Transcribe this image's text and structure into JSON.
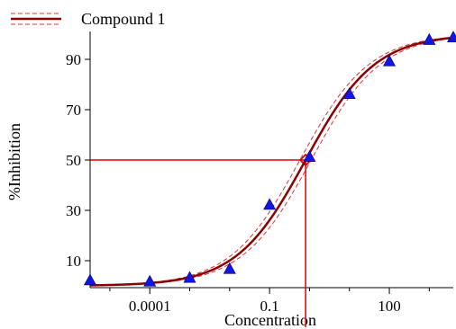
{
  "chart_data": {
    "type": "line",
    "xlabel": "Concentration",
    "ylabel": "%Inhibition",
    "x_scale": "log",
    "xlim": [
      3.2e-06,
      4000
    ],
    "ylim": [
      0,
      100
    ],
    "x_ticks": [
      {
        "value": 0.0001,
        "label": "0.0001"
      },
      {
        "value": 0.1,
        "label": "0.1"
      },
      {
        "value": 100,
        "label": "100"
      }
    ],
    "y_ticks": [
      {
        "value": 10,
        "label": "10"
      },
      {
        "value": 30,
        "label": "30"
      },
      {
        "value": 50,
        "label": "50"
      },
      {
        "value": 70,
        "label": "70"
      },
      {
        "value": 90,
        "label": "90"
      }
    ],
    "grid": false,
    "legend": {
      "position": "top-left",
      "entries": [
        {
          "label": "Compound 1"
        }
      ]
    },
    "series": [
      {
        "name": "Compound 1",
        "kind": "data-points",
        "marker": "triangle",
        "color": "#1515e0",
        "points": [
          {
            "x": 3.2e-06,
            "y": 2
          },
          {
            "x": 0.0001,
            "y": 1.5
          },
          {
            "x": 0.001,
            "y": 3
          },
          {
            "x": 0.01,
            "y": 6.5
          },
          {
            "x": 0.1,
            "y": 32
          },
          {
            "x": 1,
            "y": 51
          },
          {
            "x": 10,
            "y": 76
          },
          {
            "x": 100,
            "y": 89
          },
          {
            "x": 1000,
            "y": 97.5
          },
          {
            "x": 4000,
            "y": 98.5
          }
        ]
      },
      {
        "name": "Compound 1",
        "kind": "fit-curve",
        "model": "4PL",
        "bottom": 0,
        "top": 100,
        "ec50": 0.8,
        "hill": 0.5,
        "color": "#8b0000",
        "dashed_band_color": "#e03030"
      }
    ],
    "ic50_marker": {
      "x": 0.8,
      "y": 50,
      "color": "#e00000"
    }
  }
}
